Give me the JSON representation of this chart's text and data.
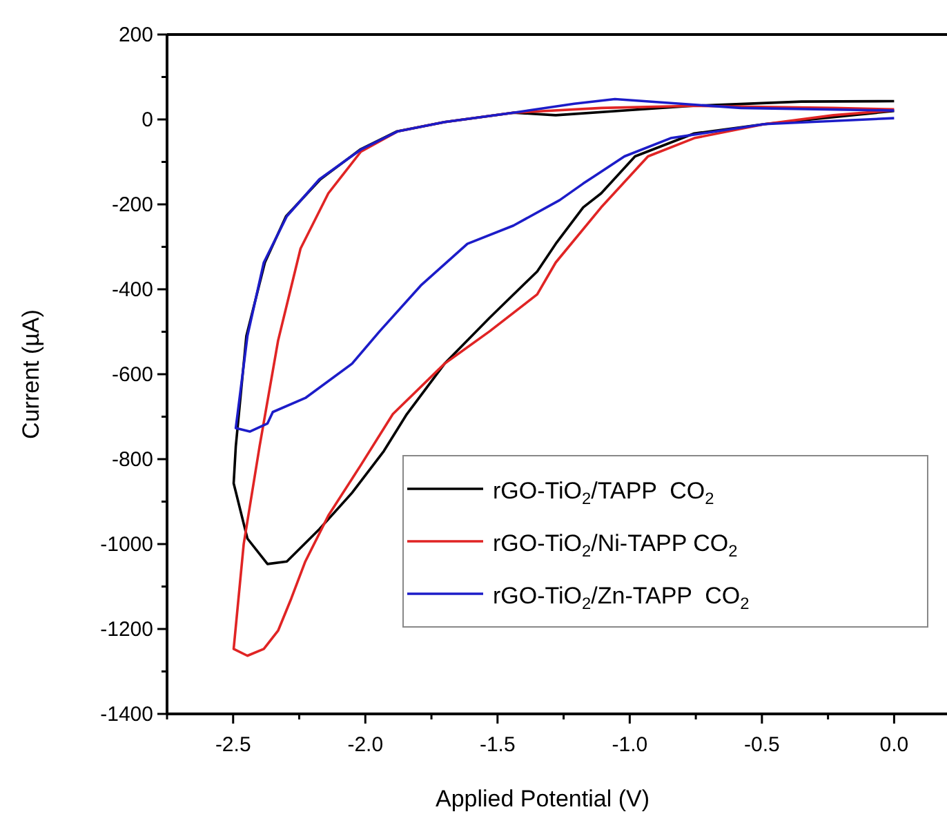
{
  "chart_data": {
    "type": "line",
    "xlabel": "Applied Potential (V)",
    "ylabel": "Current (µA)",
    "xlim": [
      -2.75,
      0.2
    ],
    "ylim": [
      -1400,
      200
    ],
    "xticks": [
      {
        "value": -2.75,
        "label": null
      },
      -2.5,
      {
        "value": -2.25,
        "label": null
      },
      {
        "value": -2,
        "label": "-2.0"
      },
      {
        "value": -1.75,
        "label": null
      },
      -1.5,
      {
        "value": -1.25,
        "label": null
      },
      {
        "value": -1,
        "label": "-1.0"
      },
      {
        "value": -0.75,
        "label": null
      },
      -0.5,
      {
        "value": -0.25,
        "label": null
      },
      {
        "value": 0,
        "label": "0.0"
      }
    ],
    "yticks": [
      -1400,
      {
        "value": -1300,
        "label": null
      },
      -1200,
      {
        "value": -1100,
        "label": null
      },
      -1000,
      {
        "value": -900,
        "label": null
      },
      -800,
      {
        "value": -700,
        "label": null
      },
      -600,
      {
        "value": -500,
        "label": null
      },
      -400,
      {
        "value": -300,
        "label": null
      },
      -200,
      {
        "value": -100,
        "label": null
      },
      0,
      {
        "value": 100,
        "label": null
      },
      200
    ],
    "grid": false,
    "legend": "right",
    "marker": "none",
    "line_style": "solid",
    "series": [
      {
        "name": "rGO-TiO$_{2}$/TAPP  CO$_{2}$",
        "color": "#000000",
        "x": [
          0.0,
          -0.35,
          -0.76,
          -1.0,
          -1.28,
          -1.44,
          -1.7,
          -1.88,
          -2.02,
          -2.17,
          -2.3,
          -2.38,
          -2.45,
          -2.49,
          -2.498,
          -2.446,
          -2.37,
          -2.297,
          -2.174,
          -2.05,
          -1.93,
          -1.843,
          -1.7,
          -1.53,
          -1.35,
          -1.28,
          -1.176,
          -1.108,
          -0.98,
          -0.756,
          -0.49,
          0.0
        ],
        "values": [
          43,
          42,
          32,
          22,
          10,
          16,
          -6,
          -28,
          -71,
          -141,
          -228,
          -337,
          -510,
          -770,
          -857,
          -987,
          -1047,
          -1041,
          -965,
          -879,
          -781,
          -694,
          -575,
          -467,
          -358,
          -293,
          -207,
          -174,
          -87,
          -33,
          -11,
          20
        ]
      },
      {
        "name": "rGO-TiO$_{2}$/Ni-TAPP CO$_{2}$",
        "color": "#e02424",
        "x": [
          0.0,
          -0.23,
          -0.756,
          -1.108,
          -1.44,
          -1.7,
          -1.877,
          -2.017,
          -2.14,
          -2.245,
          -2.33,
          -2.4,
          -2.46,
          -2.498,
          -2.446,
          -2.384,
          -2.33,
          -2.28,
          -2.227,
          -2.14,
          -2.017,
          -1.896,
          -1.7,
          -1.53,
          -1.35,
          -1.28,
          -1.108,
          -0.931,
          -0.756,
          -0.49,
          -0.23,
          -0.01
        ],
        "values": [
          24,
          27,
          32,
          27,
          16,
          -6,
          -28,
          -76,
          -174,
          -304,
          -521,
          -770,
          -1000,
          -1247,
          -1263,
          -1247,
          -1204,
          -1128,
          -1041,
          -933,
          -814,
          -694,
          -575,
          -499,
          -412,
          -337,
          -207,
          -87,
          -44,
          -11,
          10,
          21
        ]
      },
      {
        "name": "rGO-TiO$_{2}$/Zn-TAPP  CO$_{2}$",
        "color": "#1c1cc8",
        "x": [
          0.0,
          -0.58,
          -1.056,
          -1.21,
          -1.44,
          -1.7,
          -1.877,
          -2.017,
          -2.174,
          -2.297,
          -2.384,
          -2.446,
          -2.49,
          -2.437,
          -2.37,
          -2.35,
          -2.227,
          -2.05,
          -1.946,
          -1.79,
          -1.614,
          -1.44,
          -1.265,
          -1.176,
          -1.02,
          -0.845,
          -0.49,
          0.0
        ],
        "values": [
          21,
          27,
          48,
          37,
          16,
          -6,
          -28,
          -71,
          -141,
          -228,
          -337,
          -510,
          -727,
          -735,
          -716,
          -689,
          -656,
          -575,
          -499,
          -391,
          -293,
          -250,
          -190,
          -151,
          -87,
          -44,
          -11,
          3
        ]
      }
    ]
  }
}
